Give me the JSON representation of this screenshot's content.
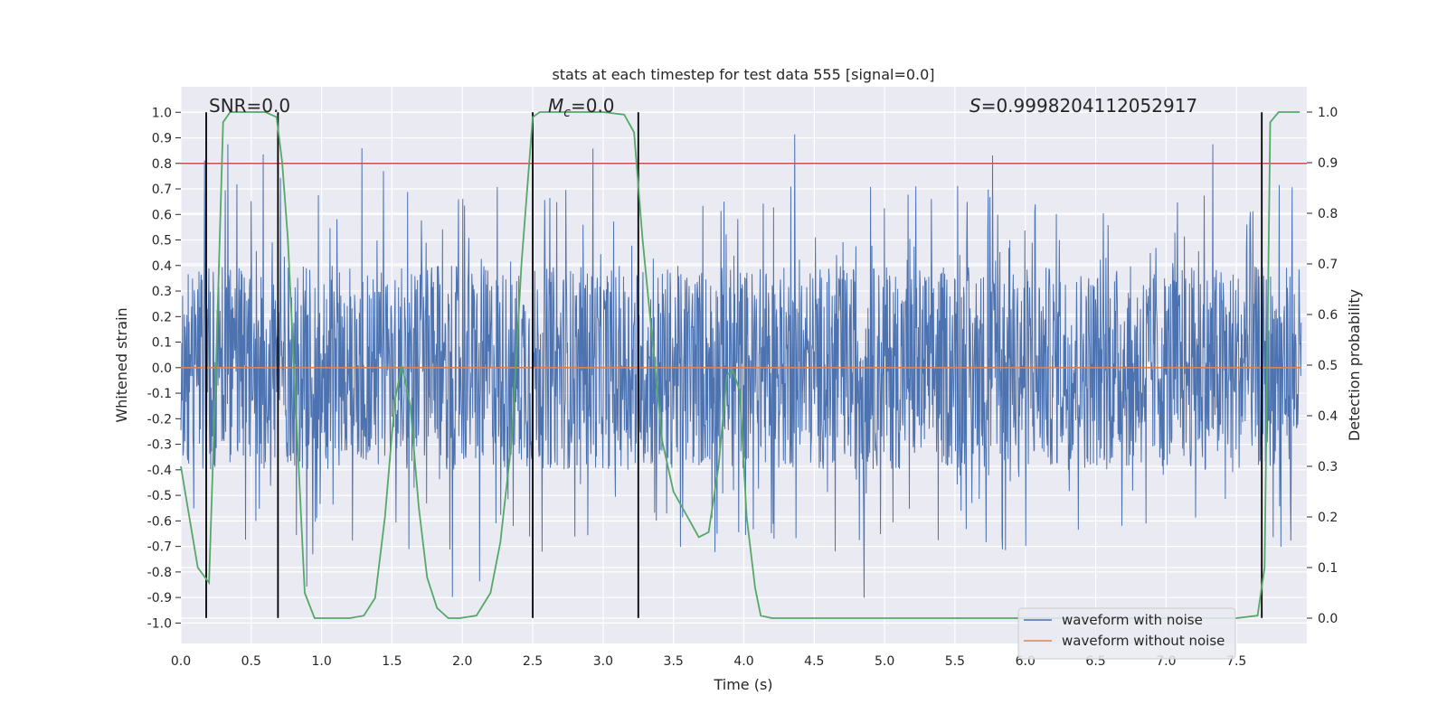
{
  "chart_data": {
    "type": "line",
    "title": "stats at each timestep for test data 555 [signal=0.0]",
    "xlabel": "Time (s)",
    "ylabel": "Whitened strain",
    "y2label": "Detection probability",
    "xlim": [
      0.0,
      8.0
    ],
    "ylim": [
      -1.08,
      1.1
    ],
    "y2lim": [
      -0.05,
      1.05
    ],
    "xticks": [
      "0.0",
      "0.5",
      "1.0",
      "1.5",
      "2.0",
      "2.5",
      "3.0",
      "3.5",
      "4.0",
      "4.5",
      "5.0",
      "5.5",
      "6.0",
      "6.5",
      "7.0",
      "7.5"
    ],
    "yticks": [
      "-1.0",
      "-0.9",
      "-0.8",
      "-0.7",
      "-0.6",
      "-0.5",
      "-0.4",
      "-0.3",
      "-0.2",
      "-0.1",
      "0.0",
      "0.1",
      "0.2",
      "0.3",
      "0.4",
      "0.5",
      "0.6",
      "0.7",
      "0.8",
      "0.9",
      "1.0"
    ],
    "y2ticks": [
      "0.0",
      "0.1",
      "0.2",
      "0.3",
      "0.4",
      "0.5",
      "0.6",
      "0.7",
      "0.8",
      "0.9",
      "1.0"
    ],
    "noise_band": {
      "typical_low": -0.38,
      "typical_high": 0.4,
      "min": -0.98,
      "max": 1.0
    },
    "series": [
      {
        "name": "waveform with noise",
        "color": "#4c72b0",
        "description_values": "dense whitened noise samples"
      },
      {
        "name": "waveform without noise",
        "color": "#dd8452",
        "values_constant": 0.0
      },
      {
        "name": "Detection probability",
        "color": "#55a868",
        "axis": "right",
        "x": [
          0.0,
          0.12,
          0.2,
          0.25,
          0.3,
          0.35,
          0.4,
          0.5,
          0.6,
          0.68,
          0.72,
          0.76,
          0.82,
          0.88,
          0.95,
          1.05,
          1.2,
          1.3,
          1.38,
          1.45,
          1.52,
          1.57,
          1.63,
          1.69,
          1.75,
          1.82,
          1.9,
          1.98,
          2.1,
          2.2,
          2.27,
          2.35,
          2.42,
          2.5,
          2.55,
          2.6,
          2.65,
          2.72,
          2.85,
          3.0,
          3.15,
          3.22,
          3.28,
          3.35,
          3.42,
          3.5,
          3.6,
          3.68,
          3.75,
          3.82,
          3.88,
          3.92,
          3.97,
          4.02,
          4.08,
          4.12,
          4.2,
          4.4,
          5.0,
          6.0,
          7.0,
          7.5,
          7.65,
          7.7,
          7.74,
          7.8,
          7.95
        ],
        "y": [
          0.3,
          0.1,
          0.07,
          0.5,
          0.98,
          1.0,
          1.0,
          1.0,
          1.0,
          0.99,
          0.9,
          0.75,
          0.4,
          0.05,
          0.0,
          0.0,
          0.0,
          0.005,
          0.04,
          0.2,
          0.43,
          0.5,
          0.42,
          0.22,
          0.08,
          0.02,
          0.0,
          0.0,
          0.005,
          0.05,
          0.15,
          0.35,
          0.7,
          0.99,
          1.0,
          1.0,
          1.0,
          1.0,
          1.0,
          1.0,
          0.995,
          0.96,
          0.75,
          0.55,
          0.35,
          0.25,
          0.2,
          0.16,
          0.17,
          0.3,
          0.48,
          0.49,
          0.45,
          0.2,
          0.06,
          0.005,
          0.0,
          0.0,
          0.0,
          0.0,
          0.0,
          0.0,
          0.005,
          0.1,
          0.98,
          1.0,
          1.0
        ]
      }
    ],
    "horizontal_line": {
      "y": 0.8,
      "color": "#c44e52"
    },
    "vertical_lines": [
      0.18,
      0.69,
      2.5,
      3.25,
      7.68
    ],
    "vertical_line_range": [
      -0.98,
      1.0
    ],
    "annotations": {
      "snr": "SNR=0.0",
      "mc_symbol": "M",
      "mc_sub": "c",
      "mc_value": "=0.0",
      "s_symbol": "S",
      "s_value": "=0.9998204112052917"
    },
    "legend_position": "lower-right"
  }
}
